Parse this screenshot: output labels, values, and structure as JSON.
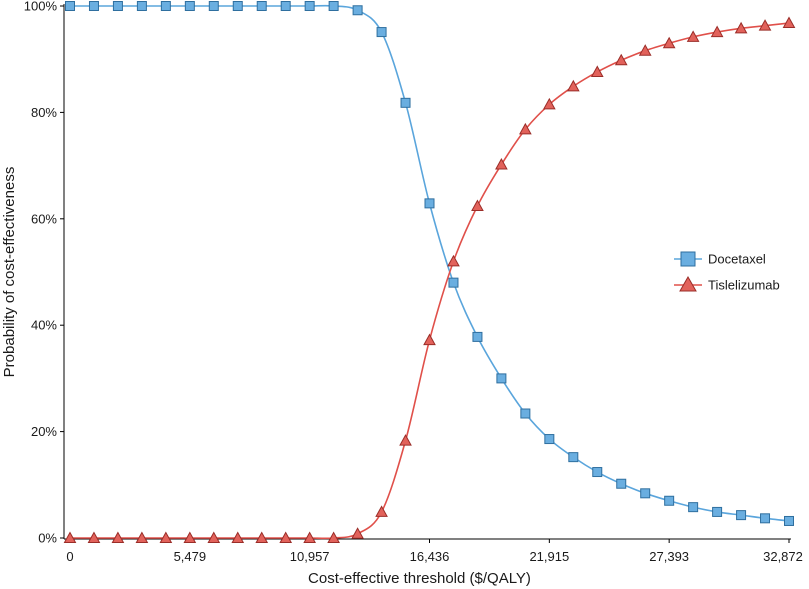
{
  "chart_data": {
    "type": "line",
    "xlabel": "Cost-effective threshold ($/QALY)",
    "ylabel": "Probability of cost-effectiveness",
    "x_ticks": [
      "0",
      "5,479",
      "10,957",
      "16,436",
      "21,915",
      "27,393",
      "32,872"
    ],
    "x_tick_values": [
      0,
      5479,
      10957,
      16436,
      21915,
      27393,
      32872
    ],
    "y_ticks": [
      "0%",
      "20%",
      "40%",
      "60%",
      "80%",
      "100%"
    ],
    "y_tick_values": [
      0,
      20,
      40,
      60,
      80,
      100
    ],
    "xlim": [
      0,
      32872
    ],
    "ylim": [
      0,
      100
    ],
    "grid": false,
    "legend_position": "right",
    "x": [
      0,
      1096,
      2191,
      3287,
      4383,
      5479,
      6574,
      7670,
      8766,
      9862,
      10957,
      12053,
      13149,
      14245,
      15340,
      16436,
      17532,
      18628,
      19723,
      20819,
      21915,
      23011,
      24106,
      25202,
      26298,
      27393,
      28489,
      29585,
      30681,
      31776,
      32872
    ],
    "series": [
      {
        "name": "Docetaxel",
        "marker": "square",
        "color": "#5aa5dc",
        "marker_fill": "#6aaee0",
        "marker_stroke": "#2f6f9f",
        "values": [
          100,
          100,
          100,
          100,
          100,
          100,
          100,
          100,
          100,
          100,
          100,
          100,
          99.2,
          95.1,
          81.8,
          62.9,
          48.0,
          37.8,
          30.0,
          23.4,
          18.6,
          15.2,
          12.4,
          10.2,
          8.4,
          7.0,
          5.8,
          4.9,
          4.3,
          3.7,
          3.2
        ]
      },
      {
        "name": "Tislelizumab",
        "marker": "triangle",
        "color": "#e0504a",
        "marker_fill": "#e2625b",
        "marker_stroke": "#9a2d28",
        "values": [
          0,
          0,
          0,
          0,
          0,
          0,
          0,
          0,
          0,
          0,
          0,
          0,
          0.8,
          4.9,
          18.3,
          37.2,
          52.0,
          62.4,
          70.2,
          76.8,
          81.5,
          84.9,
          87.6,
          89.8,
          91.6,
          93.0,
          94.2,
          95.1,
          95.8,
          96.3,
          96.8
        ]
      }
    ]
  }
}
